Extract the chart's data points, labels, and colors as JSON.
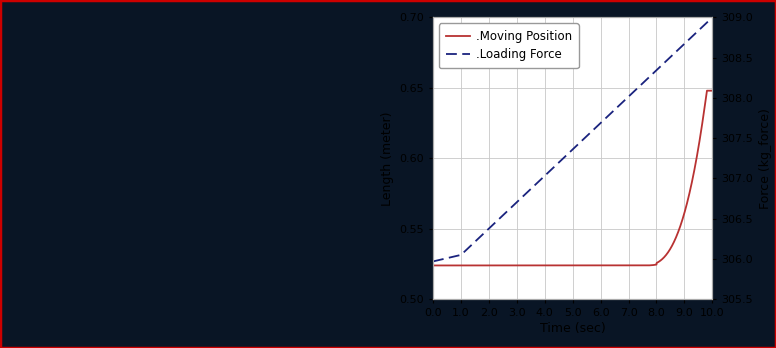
{
  "xlabel": "Time (sec)",
  "ylabel_left": "Length (meter)",
  "ylabel_right": "Force (kg_force)",
  "xlim": [
    0.0,
    10.0
  ],
  "ylim_left": [
    0.5,
    0.7
  ],
  "ylim_right": [
    305.5,
    309.0
  ],
  "xticks": [
    0.0,
    1.0,
    2.0,
    3.0,
    4.0,
    5.0,
    6.0,
    7.0,
    8.0,
    9.0,
    10.0
  ],
  "yticks_left": [
    0.5,
    0.55,
    0.6,
    0.65,
    0.7
  ],
  "yticks_right": [
    305.5,
    306.0,
    306.5,
    307.0,
    307.5,
    308.0,
    308.5,
    309.0
  ],
  "legend_moving": ".Moving Position",
  "legend_loading": ".Loading Force",
  "line_position_color": "#b83232",
  "line_force_color": "#1a237e",
  "plot_bg_color": "#ffffff",
  "grid_color": "#c8c8c8",
  "outer_bg_color": "#e8e8e8",
  "image_bg_color": "#091525",
  "fig_bg_color": "#b0b8c8",
  "border_color": "#cc0000"
}
